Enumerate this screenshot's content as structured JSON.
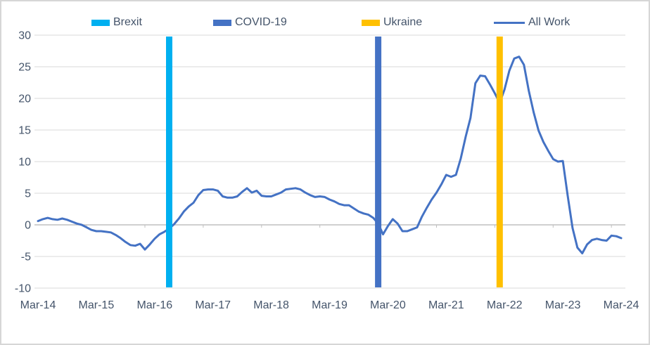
{
  "chart_data": {
    "type": "line",
    "title": "",
    "xlabel": "",
    "ylabel": "",
    "ylim": [
      -10,
      30
    ],
    "y_ticks": [
      30,
      25,
      20,
      15,
      10,
      5,
      0,
      -5,
      -10
    ],
    "x_tick_labels": [
      "Mar-14",
      "Mar-15",
      "Mar-16",
      "Mar-17",
      "Mar-18",
      "Mar-19",
      "Mar-20",
      "Mar-21",
      "Mar-22",
      "Mar-23",
      "Mar-24"
    ],
    "x_interval": "monthly",
    "x_start": "Mar-14",
    "x_end": "Mar-24",
    "grid": true,
    "legend_position": "top",
    "series": [
      {
        "name": "All Work",
        "color": "#4472c4",
        "values": [
          0.6,
          0.9,
          1.1,
          0.9,
          0.8,
          1.0,
          0.8,
          0.5,
          0.2,
          0.0,
          -0.4,
          -0.8,
          -1.0,
          -1.0,
          -1.1,
          -1.2,
          -1.6,
          -2.1,
          -2.7,
          -3.2,
          -3.3,
          -3.0,
          -3.9,
          -3.1,
          -2.2,
          -1.5,
          -1.1,
          -0.6,
          0.1,
          1.0,
          2.1,
          2.9,
          3.5,
          4.7,
          5.5,
          5.6,
          5.6,
          5.4,
          4.5,
          4.3,
          4.3,
          4.5,
          5.2,
          5.8,
          5.1,
          5.4,
          4.6,
          4.5,
          4.5,
          4.8,
          5.1,
          5.6,
          5.7,
          5.8,
          5.6,
          5.1,
          4.7,
          4.4,
          4.5,
          4.4,
          4.0,
          3.7,
          3.3,
          3.1,
          3.1,
          2.6,
          2.1,
          1.8,
          1.6,
          1.1,
          0.2,
          -1.5,
          -0.2,
          0.9,
          0.2,
          -1.0,
          -1.0,
          -0.7,
          -0.4,
          1.3,
          2.7,
          4.0,
          5.1,
          6.4,
          7.9,
          7.6,
          7.9,
          10.5,
          13.9,
          16.9,
          22.4,
          23.6,
          23.5,
          22.2,
          20.8,
          19.3,
          21.4,
          24.4,
          26.3,
          26.6,
          25.3,
          21.2,
          17.8,
          14.9,
          13.1,
          11.7,
          10.4,
          10.0,
          10.1,
          4.6,
          -0.5,
          -3.6,
          -4.5,
          -3.1,
          -2.4,
          -2.2,
          -2.4,
          -2.5,
          -1.7,
          -1.8,
          -2.1
        ]
      }
    ],
    "events": [
      {
        "name": "Brexit",
        "date_label": "Jun-16",
        "month_index": 27,
        "color": "#00b0f0",
        "span": [
          -10,
          30
        ]
      },
      {
        "name": "COVID-19",
        "date_label": "Jan-20",
        "month_index": 70,
        "color": "#4472c4",
        "span": [
          -10,
          30
        ]
      },
      {
        "name": "Ukraine",
        "date_label": "Feb-22",
        "month_index": 95,
        "color": "#ffc000",
        "span": [
          -10,
          30
        ]
      }
    ],
    "colors": {
      "grid": "#d9d9d9",
      "zero_axis": "#bfbfbf",
      "text": "#44546a",
      "background": "#ffffff",
      "border": "#d6d6d6"
    }
  },
  "legend": {
    "items": [
      {
        "label": "Brexit",
        "swatch": "bar",
        "color": "#00b0f0"
      },
      {
        "label": "COVID-19",
        "swatch": "bar",
        "color": "#4472c4"
      },
      {
        "label": "Ukraine",
        "swatch": "bar",
        "color": "#ffc000"
      },
      {
        "label": "All Work",
        "swatch": "line",
        "color": "#4472c4"
      }
    ]
  }
}
